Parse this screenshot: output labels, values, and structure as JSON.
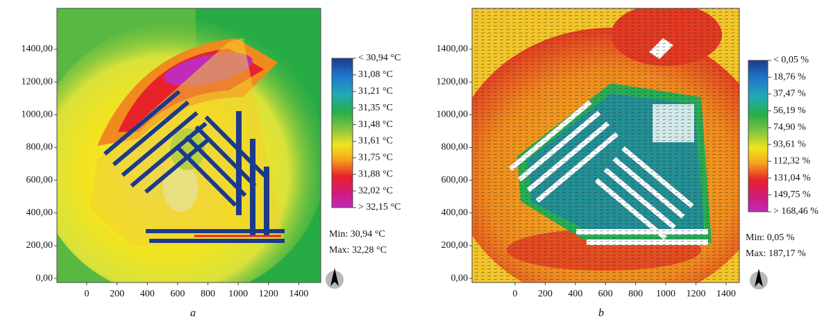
{
  "panels": [
    {
      "caption": "a",
      "xlim": [
        -197,
        1545
      ],
      "ylim": [
        -25,
        1650
      ],
      "xticks": [
        0,
        200,
        400,
        600,
        800,
        1000,
        1200,
        1400
      ],
      "yticks": [
        {
          "value": 0,
          "label": "0,00"
        },
        {
          "value": 200,
          "label": "200,00"
        },
        {
          "value": 400,
          "label": "400,00"
        },
        {
          "value": 600,
          "label": "600,00"
        },
        {
          "value": 800,
          "label": "800,00"
        },
        {
          "value": 1000,
          "label": "1000,00"
        },
        {
          "value": 1200,
          "label": "1200,00"
        },
        {
          "value": 1400,
          "label": "1400,00"
        }
      ],
      "legend": [
        "< 30,94 °C",
        "31,08 °C",
        "31,21 °C",
        "31,35 °C",
        "31,48 °C",
        "31,61 °C",
        "31,75 °C",
        "31,88 °C",
        "32,02 °C",
        "> 32,15 °C"
      ],
      "min": "Min: 30,94 °C",
      "max": "Max: 32,28 °C"
    },
    {
      "caption": "b",
      "xlim": [
        -285,
        1488
      ],
      "ylim": [
        -25,
        1650
      ],
      "xticks": [
        0,
        200,
        400,
        600,
        800,
        1000,
        1200,
        1400
      ],
      "yticks": [
        {
          "value": 0,
          "label": "0,00"
        },
        {
          "value": 200,
          "label": "200,00"
        },
        {
          "value": 400,
          "label": "400,00"
        },
        {
          "value": 600,
          "label": "600,00"
        },
        {
          "value": 800,
          "label": "800,00"
        },
        {
          "value": 1000,
          "label": "1000,00"
        },
        {
          "value": 1200,
          "label": "1200,00"
        },
        {
          "value": 1400,
          "label": "1400,00"
        }
      ],
      "legend": [
        "< 0,05 %",
        "18,76 %",
        "37,47 %",
        "56,19 %",
        "74,90 %",
        "93,61 %",
        "112,32 %",
        "131,04 %",
        "149,75 %",
        "> 168,46 %"
      ],
      "min": "Min: 0,05 %",
      "max": "Max: 187,17 %"
    }
  ]
}
